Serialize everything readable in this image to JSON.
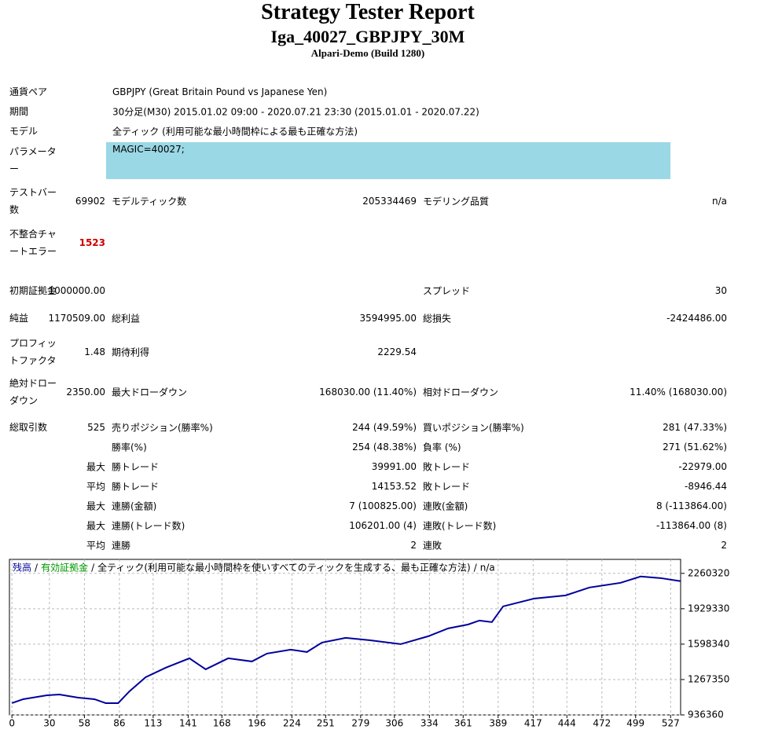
{
  "header": {
    "title": "Strategy Tester Report",
    "subtitle": "Iga_40027_GBPJPY_30M",
    "server": "Alpari-Demo (Build 1280)"
  },
  "table": {
    "rows": [
      [
        "通貨ペア",
        "GBPJPY (Great Britain Pound vs Japanese Yen)"
      ],
      [
        "期間",
        "30分足(M30) 2015.01.02 09:00 - 2020.07.21 23:30 (2015.01.01 - 2020.07.22)"
      ],
      [
        "モデル",
        "全ティック (利用可能な最小時間枠による最も正確な方法)"
      ],
      [
        "パラメーター",
        "MAGIC=40027;"
      ],
      [
        "テストバー数",
        "69902",
        "モデルティック数",
        "205334469",
        "モデリング品質",
        "n/a"
      ],
      [
        "不整合チャートエラー",
        "1523"
      ],
      [
        "初期証拠金",
        "1000000.00",
        null,
        null,
        "スプレッド",
        "30"
      ],
      [
        "純益",
        "1170509.00",
        "総利益",
        "3594995.00",
        "総損失",
        "-2424486.00"
      ],
      [
        "プロフィットファクタ",
        "1.48",
        "期待利得",
        "2229.54"
      ],
      [
        "絶対ドローダウン",
        "2350.00",
        "最大ドローダウン",
        "168030.00 (11.40%)",
        "相対ドローダウン",
        "11.40% (168030.00)"
      ],
      [
        "総取引数",
        "525",
        "売りポジション(勝率%)",
        "244 (49.59%)",
        "買いポジション(勝率%)",
        "281 (47.33%)"
      ],
      [
        null,
        null,
        "勝率(%)",
        "254 (48.38%)",
        "負率 (%)",
        "271 (51.62%)"
      ],
      [
        null,
        "最大",
        "勝トレード",
        "39991.00",
        "敗トレード",
        "-22979.00"
      ],
      [
        null,
        "平均",
        "勝トレード",
        "14153.52",
        "敗トレード",
        "-8946.44"
      ],
      [
        null,
        "最大",
        "連勝(金額)",
        "7 (100825.00)",
        "連敗(金額)",
        "8 (-113864.00)"
      ],
      [
        null,
        "最大",
        "連勝(トレード数)",
        "106201.00 (4)",
        "連敗(トレード数)",
        "-113864.00 (8)"
      ],
      [
        null,
        "平均",
        "連勝",
        "2",
        "連敗",
        "2"
      ]
    ]
  },
  "chart_data": {
    "type": "line",
    "legend_separator": "/",
    "equity_label": "有効証拠金",
    "equity_color": "#009900",
    "model_note": "全ティック(利用可能な最小時間枠を使いすべてのティックを生成する、最も正確な方法)",
    "quality": "n/a",
    "x": [
      0,
      9,
      28,
      38,
      53,
      66,
      75,
      85,
      94,
      107,
      123,
      142,
      155,
      173,
      192,
      204,
      223,
      236,
      248,
      267,
      286,
      311,
      333,
      349,
      365,
      374,
      384,
      393,
      403,
      418,
      443,
      462,
      487,
      503,
      519,
      535
    ],
    "series": [
      {
        "name": "残高",
        "color": "#00009c",
        "values": [
          1046700,
          1083500,
          1120200,
          1127600,
          1098200,
          1083500,
          1046700,
          1046700,
          1157000,
          1289400,
          1377700,
          1465900,
          1363000,
          1465900,
          1436500,
          1510100,
          1546900,
          1524800,
          1613000,
          1657200,
          1635100,
          1598300,
          1671900,
          1745400,
          1782200,
          1819000,
          1804300,
          1951400,
          1980800,
          2024900,
          2054300,
          2127900,
          2172000,
          2230800,
          2216000,
          2186800
        ]
      }
    ],
    "xlim": [
      -2,
      535
    ],
    "xticks": [
      0,
      30,
      58,
      86,
      113,
      141,
      168,
      196,
      224,
      251,
      279,
      306,
      334,
      361,
      389,
      417,
      444,
      472,
      499,
      527
    ],
    "ylim": [
      936360,
      2391000
    ],
    "yticks": [
      936360,
      1267350,
      1598340,
      1929330,
      2260320
    ],
    "grid": true
  }
}
